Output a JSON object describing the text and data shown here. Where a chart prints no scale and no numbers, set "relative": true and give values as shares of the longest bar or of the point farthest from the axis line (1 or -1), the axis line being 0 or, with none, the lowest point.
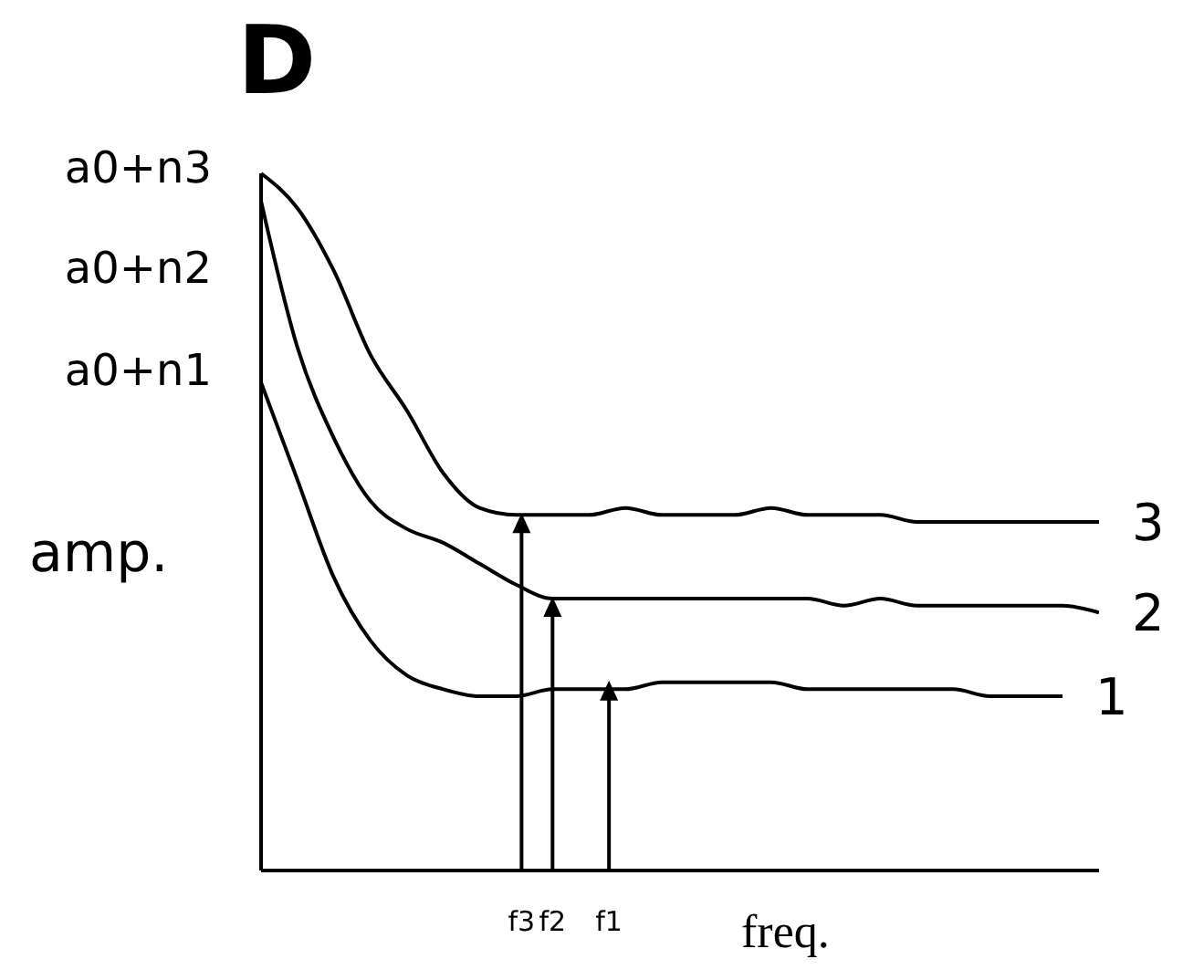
{
  "chart_data": {
    "type": "line",
    "title": "D",
    "xlabel": "freq.",
    "ylabel": "amp.",
    "relative": true,
    "marker": "none",
    "line_style": "solid",
    "grid": false,
    "legend": false,
    "categories": [
      null,
      null,
      null,
      null,
      null,
      null,
      null,
      null,
      null,
      null,
      null,
      null,
      null,
      null,
      null,
      null,
      null,
      null,
      null,
      null,
      null,
      null,
      null,
      null
    ],
    "series": [
      {
        "name": "3",
        "color": "#000000",
        "values": [
          1.0,
          0.95,
          0.86,
          0.74,
          0.66,
          0.57,
          0.52,
          0.51,
          0.51,
          0.51,
          0.52,
          0.51,
          0.51,
          0.51,
          0.52,
          0.51,
          0.51,
          0.51,
          0.5,
          0.5,
          0.5,
          0.5,
          0.5,
          0.5
        ]
      },
      {
        "name": "2",
        "color": "#000000",
        "values": [
          0.96,
          0.75,
          0.62,
          0.53,
          0.49,
          0.47,
          0.44,
          0.41,
          0.39,
          0.39,
          0.39,
          0.39,
          0.39,
          0.39,
          0.39,
          0.39,
          0.38,
          0.39,
          0.38,
          0.38,
          0.38,
          0.38,
          0.38,
          0.37
        ]
      },
      {
        "name": "1",
        "color": "#000000",
        "values": [
          0.7,
          0.56,
          0.42,
          0.33,
          0.28,
          0.26,
          0.25,
          0.25,
          0.26,
          0.26,
          0.26,
          0.27,
          0.27,
          0.27,
          0.27,
          0.26,
          0.26,
          0.26,
          0.26,
          0.26,
          0.25,
          0.25,
          0.25,
          null
        ]
      }
    ],
    "annotations": [
      "a0+n3",
      "a0+n2",
      "a0+n1",
      {
        "text": "f3",
        "y": 0.51
      },
      {
        "text": "f2",
        "y": 0.39
      },
      {
        "text": "f1",
        "y": 0.27
      }
    ]
  }
}
